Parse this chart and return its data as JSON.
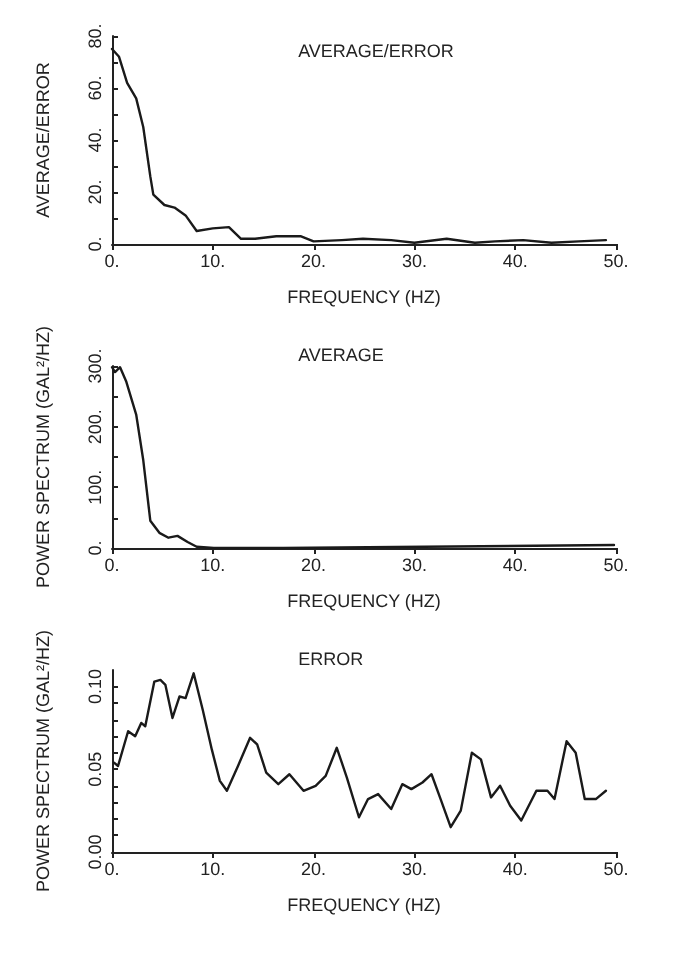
{
  "chart_data": [
    {
      "type": "line",
      "title": "AVERAGE/ERROR",
      "xlabel": "FREQUENCY (HZ)",
      "ylabel": "AVERAGE/ERROR",
      "xlim": [
        0,
        50
      ],
      "ylim": [
        0,
        80
      ],
      "xticks": [
        {
          "value": 0,
          "label": "0."
        },
        {
          "value": 10,
          "label": "10."
        },
        {
          "value": 20,
          "label": "20."
        },
        {
          "value": 30,
          "label": "30."
        },
        {
          "value": 40,
          "label": "40."
        },
        {
          "value": 50,
          "label": "50."
        }
      ],
      "yticks": [
        {
          "value": 0,
          "label": "0."
        },
        {
          "value": 10,
          "label": null
        },
        {
          "value": 20,
          "label": "20."
        },
        {
          "value": 30,
          "label": null
        },
        {
          "value": 40,
          "label": "40."
        },
        {
          "value": 50,
          "label": null
        },
        {
          "value": 60,
          "label": "60."
        },
        {
          "value": 70,
          "label": null
        },
        {
          "value": 80,
          "label": "80."
        }
      ],
      "grid": false,
      "marker": "none",
      "line_style": "solid",
      "series": [
        {
          "color": "#1a1a1a",
          "x": [
            0,
            0.7,
            1.5,
            2.4,
            3.1,
            3.8,
            4.1,
            5.2,
            6.2,
            7.3,
            8.4,
            10,
            11.6,
            12.8,
            14.2,
            16.3,
            18.7,
            20,
            22.8,
            24.9,
            27.7,
            30,
            33.2,
            36,
            38,
            40.8,
            43.6,
            46.3,
            49
          ],
          "values": [
            75,
            72,
            62,
            56,
            45,
            26,
            19,
            15,
            14,
            11,
            5,
            6,
            6.5,
            2,
            2,
            3,
            3,
            1,
            1.5,
            2,
            1.5,
            0.5,
            2,
            0.5,
            1,
            1.5,
            0.5,
            1,
            1.5
          ]
        }
      ]
    },
    {
      "type": "line",
      "title": "AVERAGE",
      "xlabel": "FREQUENCY (HZ)",
      "ylabel": "POWER SPECTRUM (GAL²/HZ)",
      "xlim": [
        0,
        50
      ],
      "ylim": [
        0,
        300
      ],
      "xticks": [
        {
          "value": 0,
          "label": "0."
        },
        {
          "value": 10,
          "label": "10."
        },
        {
          "value": 20,
          "label": "20."
        },
        {
          "value": 30,
          "label": "30."
        },
        {
          "value": 40,
          "label": "40."
        },
        {
          "value": 50,
          "label": "50."
        }
      ],
      "yticks": [
        {
          "value": 0,
          "label": "0."
        },
        {
          "value": 50,
          "label": null
        },
        {
          "value": 100,
          "label": "100."
        },
        {
          "value": 150,
          "label": null
        },
        {
          "value": 200,
          "label": "200."
        },
        {
          "value": 250,
          "label": null
        },
        {
          "value": 300,
          "label": "300."
        }
      ],
      "grid": false,
      "marker": "none",
      "line_style": "solid",
      "series": [
        {
          "color": "#1a1a1a",
          "x": [
            0,
            0.3,
            0.8,
            1.4,
            2.4,
            3.1,
            3.8,
            4.7,
            5.6,
            6.5,
            7.5,
            8.4,
            10.1,
            17,
            31,
            49.8
          ],
          "values": [
            298,
            290,
            298,
            275,
            220,
            145,
            45,
            25,
            17,
            20,
            10,
            2,
            0,
            0,
            2,
            5
          ]
        }
      ]
    },
    {
      "type": "line",
      "title": "ERROR",
      "xlabel": "FREQUENCY (HZ)",
      "ylabel": "POWER SPECTRUM (GAL²/HZ)",
      "xlim": [
        0,
        50
      ],
      "ylim": [
        0,
        0.11
      ],
      "xticks": [
        {
          "value": 0,
          "label": "0."
        },
        {
          "value": 10,
          "label": "10."
        },
        {
          "value": 20,
          "label": "20."
        },
        {
          "value": 30,
          "label": "30."
        },
        {
          "value": 40,
          "label": "40."
        },
        {
          "value": 50,
          "label": "50."
        }
      ],
      "yticks": [
        {
          "value": 0,
          "label": "0.00"
        },
        {
          "value": 0.01,
          "label": null
        },
        {
          "value": 0.02,
          "label": null
        },
        {
          "value": 0.03,
          "label": null
        },
        {
          "value": 0.04,
          "label": null
        },
        {
          "value": 0.05,
          "label": "0.05"
        },
        {
          "value": 0.06,
          "label": null
        },
        {
          "value": 0.07,
          "label": null
        },
        {
          "value": 0.08,
          "label": null
        },
        {
          "value": 0.09,
          "label": null
        },
        {
          "value": 0.1,
          "label": "0.10"
        }
      ],
      "grid": false,
      "marker": "none",
      "line_style": "solid",
      "series": [
        {
          "color": "#1a1a1a",
          "x": [
            0.2,
            0.6,
            1.6,
            2.3,
            2.9,
            3.3,
            4.2,
            4.8,
            5.3,
            6.0,
            6.7,
            7.3,
            8.1,
            9.0,
            9.9,
            10.7,
            11.4,
            12.5,
            13.7,
            14.4,
            15.3,
            16.5,
            17.6,
            19,
            20.2,
            21.2,
            22.3,
            23.3,
            24.5,
            25.4,
            26.4,
            27.7,
            28.8,
            29.7,
            30.8,
            31.7,
            32.6,
            33.6,
            34.6,
            35.7,
            36.6,
            37.6,
            38.5,
            39.5,
            40.6,
            42.1,
            43.2,
            43.9,
            45.1,
            46,
            46.9,
            48,
            49
          ],
          "values": [
            0.054,
            0.052,
            0.073,
            0.07,
            0.078,
            0.076,
            0.103,
            0.104,
            0.101,
            0.081,
            0.094,
            0.093,
            0.108,
            0.086,
            0.062,
            0.043,
            0.037,
            0.052,
            0.069,
            0.065,
            0.048,
            0.041,
            0.047,
            0.037,
            0.04,
            0.046,
            0.063,
            0.045,
            0.021,
            0.032,
            0.035,
            0.026,
            0.041,
            0.038,
            0.042,
            0.047,
            0.032,
            0.015,
            0.025,
            0.06,
            0.056,
            0.033,
            0.04,
            0.028,
            0.019,
            0.037,
            0.037,
            0.032,
            0.067,
            0.06,
            0.032,
            0.032,
            0.037
          ]
        }
      ]
    }
  ]
}
